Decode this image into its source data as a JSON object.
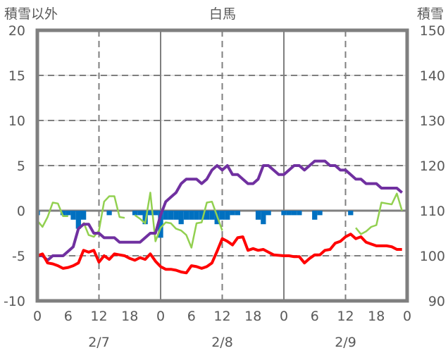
{
  "chart_data": {
    "type": "line",
    "title": "白馬",
    "ylabel_left": "積雪以外",
    "ylabel_right": "積雪",
    "ylim_left": [
      -10,
      20
    ],
    "ylim_right": [
      90,
      150
    ],
    "yticks_left": [
      "20",
      "15",
      "10",
      "5",
      "0",
      "-5",
      "-10"
    ],
    "yticks_right": [
      "150",
      "140",
      "130",
      "120",
      "110",
      "100",
      "90"
    ],
    "xlim_hours": [
      0,
      72
    ],
    "xtick_labels": [
      "0",
      "6",
      "12",
      "18",
      "0",
      "6",
      "12",
      "18",
      "0",
      "6",
      "12",
      "18",
      "0"
    ],
    "date_labels": [
      "2/7",
      "2/8",
      "2/9"
    ],
    "grid": true,
    "colors": {
      "snow_depth": "#7030A0",
      "temperature": "#FF0000",
      "green_series": "#92D050",
      "bars": "#0070C0",
      "axis": "#7F7F7F"
    },
    "series": [
      {
        "name": "積雪",
        "axis": "right",
        "kind": "line",
        "color": "#7030A0",
        "values": [
          100,
          100,
          99,
          100,
          100,
          100,
          101,
          102,
          106,
          107,
          107,
          105,
          105,
          104,
          104,
          104,
          103,
          103,
          103,
          103,
          103,
          104,
          105,
          105,
          109,
          112,
          113,
          114,
          116,
          117,
          117,
          117,
          116,
          117,
          119,
          120,
          119,
          120,
          118,
          118,
          117,
          116,
          116,
          117,
          120,
          120,
          119,
          118,
          118,
          119,
          120,
          120,
          119,
          120,
          121,
          121,
          121,
          120,
          120,
          119,
          119,
          118,
          117,
          117,
          116,
          116,
          116,
          115,
          115,
          115,
          115,
          114
        ]
      },
      {
        "name": "temperature",
        "axis": "left",
        "kind": "line",
        "color": "#FF0000",
        "values": [
          -5.0,
          -4.8,
          -5.8,
          -5.9,
          -6.1,
          -6.4,
          -6.3,
          -6.1,
          -5.8,
          -4.4,
          -4.6,
          -4.4,
          -5.7,
          -5.0,
          -5.4,
          -4.8,
          -4.9,
          -5.0,
          -5.3,
          -5.5,
          -5.2,
          -5.4,
          -4.8,
          -5.6,
          -6.2,
          -6.5,
          -6.5,
          -6.6,
          -6.8,
          -6.9,
          -6.1,
          -6.2,
          -6.4,
          -6.2,
          -5.8,
          -4.5,
          -3.1,
          -3.4,
          -3.8,
          -3.0,
          -2.9,
          -4.4,
          -4.2,
          -4.4,
          -4.3,
          -4.6,
          -4.9,
          -4.95,
          -5.0,
          -5.0,
          -5.1,
          -5.1,
          -5.8,
          -5.3,
          -4.9,
          -4.9,
          -4.4,
          -4.3,
          -3.6,
          -3.4,
          -2.9,
          -2.6,
          -3.1,
          -2.9,
          -3.5,
          -3.7,
          -3.9,
          -3.9,
          -3.9,
          -4.0,
          -4.3,
          -4.3
        ]
      },
      {
        "name": "green",
        "axis": "left",
        "kind": "line",
        "color": "#92D050",
        "values": [
          -1.1,
          -1.8,
          -0.7,
          0.9,
          0.8,
          -0.6,
          -0.6,
          null,
          null,
          -1.3,
          -2.7,
          -2.9,
          -2.2,
          1.0,
          1.6,
          1.6,
          -0.7,
          -0.8,
          null,
          -0.5,
          -0.9,
          -1.4,
          2.0,
          -3.4,
          -1.9,
          -1.3,
          -1.4,
          -2.0,
          -2.2,
          -2.7,
          -4.1,
          -1.4,
          -1.3,
          0.9,
          1.0,
          -0.6,
          -2.2,
          null,
          null,
          null,
          null,
          null,
          null,
          null,
          null,
          null,
          null,
          null,
          null,
          null,
          null,
          null,
          null,
          null,
          null,
          null,
          null,
          null,
          null,
          null,
          null,
          null,
          -1.9,
          -2.6,
          -2.3,
          -1.8,
          -1.6,
          0.9,
          0.8,
          0.7,
          1.9,
          0.0
        ]
      },
      {
        "name": "bars",
        "axis": "left",
        "kind": "bar",
        "color": "#0070C0",
        "values": [
          -0.5,
          0,
          0,
          0,
          0,
          -0.5,
          -0.5,
          -1.0,
          -2.0,
          -1.0,
          0,
          0,
          0,
          0,
          -0.5,
          0,
          0,
          0,
          0,
          -0.5,
          -0.5,
          -1.5,
          -0.5,
          -0.5,
          -3.0,
          -1.0,
          -1.0,
          -1.0,
          -1.5,
          -1.0,
          -1.0,
          -1.0,
          -1.0,
          -1.0,
          -1.0,
          -1.5,
          -1.0,
          -1.0,
          -0.5,
          -0.5,
          0,
          0,
          0,
          -1.0,
          -1.5,
          -0.5,
          0,
          0,
          -0.5,
          -0.5,
          -0.5,
          -0.5,
          0,
          0,
          -1.0,
          -0.5,
          0,
          0,
          0,
          0,
          0,
          -0.5,
          0,
          0,
          0,
          0,
          0,
          0,
          0,
          0,
          0,
          0
        ]
      }
    ]
  }
}
